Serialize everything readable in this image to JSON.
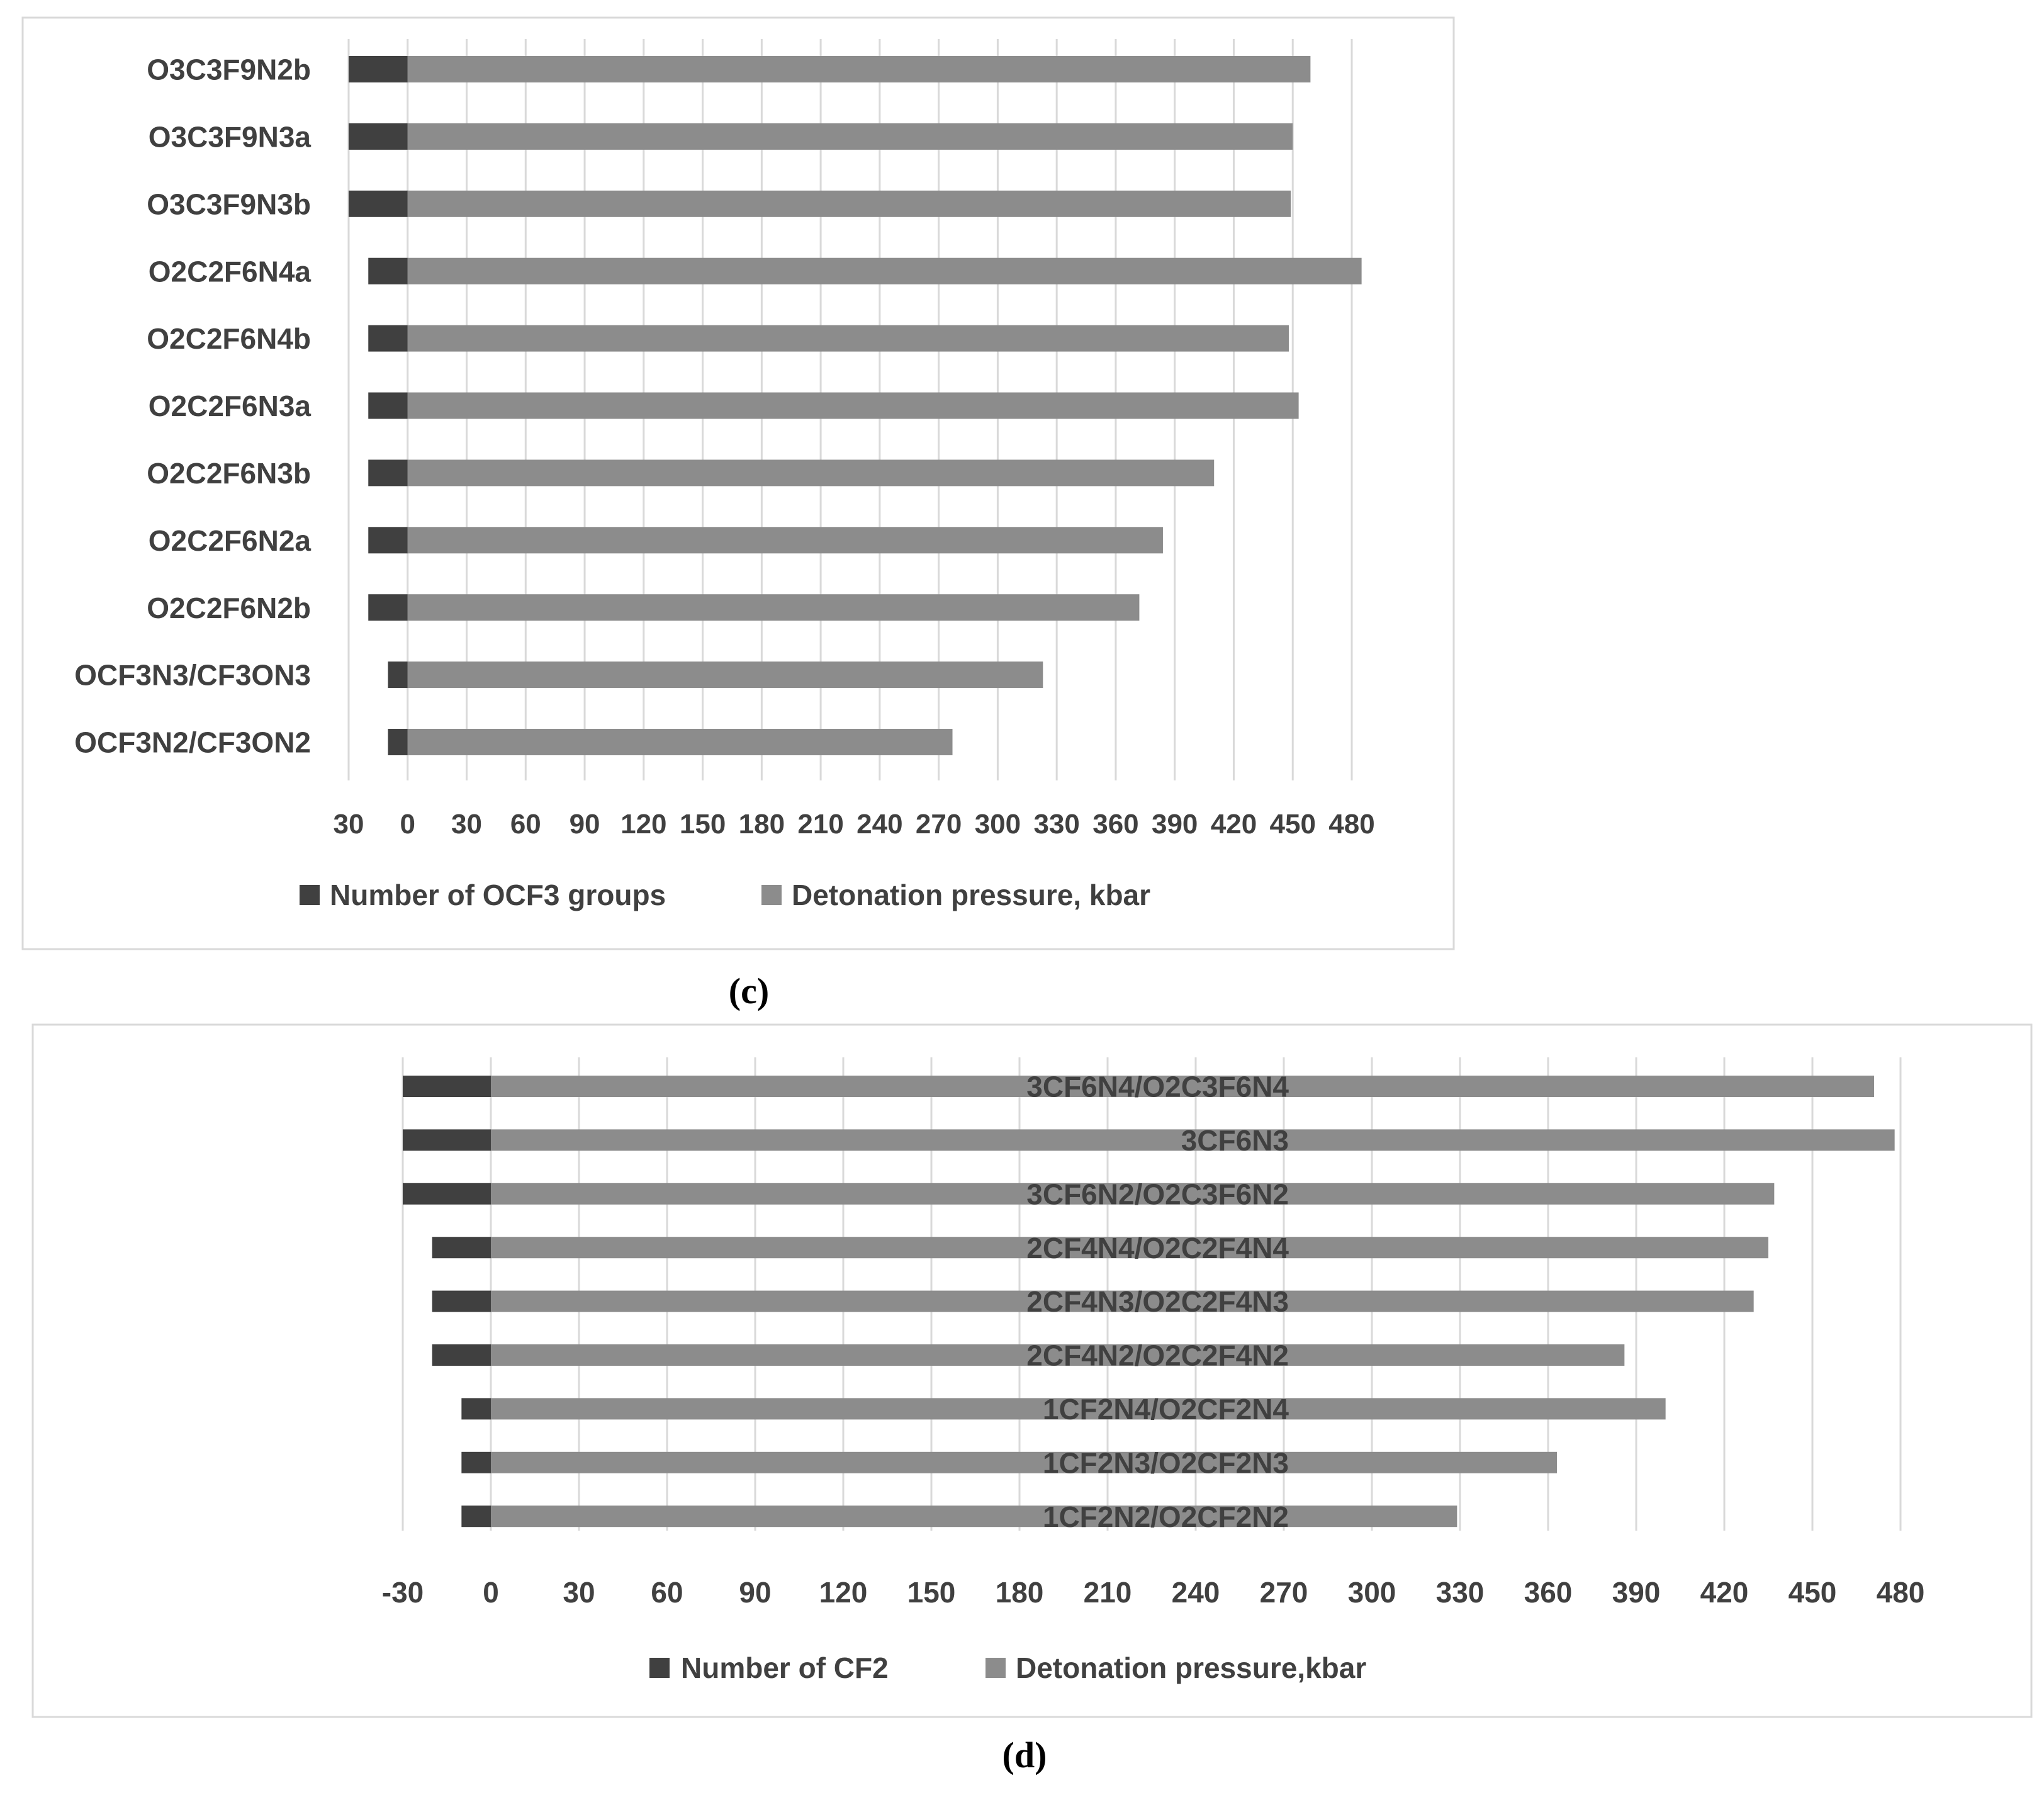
{
  "colors": {
    "series1": "#404040",
    "series2": "#8c8c8c",
    "grid": "#d9d9d9",
    "text": "#404040"
  },
  "chart_data": [
    {
      "type": "bar",
      "orientation": "horizontal",
      "stacked": true,
      "caption": "c",
      "categories": [
        "O3C3F9N2b",
        "O3C3F9N3a",
        "O3C3F9N3b",
        "O2C2F6N4a",
        "O2C2F6N4b",
        "O2C2F6N3a",
        "O2C2F6N3b",
        "O2C2F6N2a",
        "O2C2F6N2b",
        "OCF3N3/CF3ON3",
        "OCF3N2/CF3ON2"
      ],
      "series": [
        {
          "name": "Number of OCF3 groups",
          "values": [
            -30,
            -30,
            -30,
            -20,
            -20,
            -20,
            -20,
            -20,
            -20,
            -10,
            -10
          ]
        },
        {
          "name": "Detonation pressure, kbar",
          "values": [
            459,
            450,
            449,
            485,
            448,
            453,
            410,
            384,
            372,
            323,
            277
          ]
        }
      ],
      "xticks": [
        "30",
        "0",
        "30",
        "60",
        "90",
        "120",
        "150",
        "180",
        "210",
        "240",
        "270",
        "300",
        "330",
        "360",
        "390",
        "420",
        "450",
        "480"
      ],
      "xlim": [
        -30,
        480
      ],
      "grid": true,
      "legend": "bottom"
    },
    {
      "type": "bar",
      "orientation": "horizontal",
      "stacked": true,
      "caption": "d",
      "categories": [
        "3CF6N4/O2C3F6N4",
        "3CF6N3",
        "3CF6N2/O2C3F6N2",
        "2CF4N4/O2C2F4N4",
        "2CF4N3/O2C2F4N3",
        "2CF4N2/O2C2F4N2",
        "1CF2N4/O2CF2N4",
        "1CF2N3/O2CF2N3",
        "1CF2N2/O2CF2N2"
      ],
      "series": [
        {
          "name": "Number of CF2",
          "values": [
            -30,
            -30,
            -30,
            -20,
            -20,
            -20,
            -10,
            -10,
            -10
          ]
        },
        {
          "name": "Detonation pressure,kbar",
          "values": [
            471,
            478,
            437,
            435,
            430,
            386,
            400,
            363,
            329
          ]
        }
      ],
      "xticks": [
        "-30",
        "0",
        "30",
        "60",
        "90",
        "120",
        "150",
        "180",
        "210",
        "240",
        "270",
        "300",
        "330",
        "360",
        "390",
        "420",
        "450",
        "480"
      ],
      "xlim": [
        -30,
        480
      ],
      "grid": true,
      "legend": "bottom"
    }
  ]
}
